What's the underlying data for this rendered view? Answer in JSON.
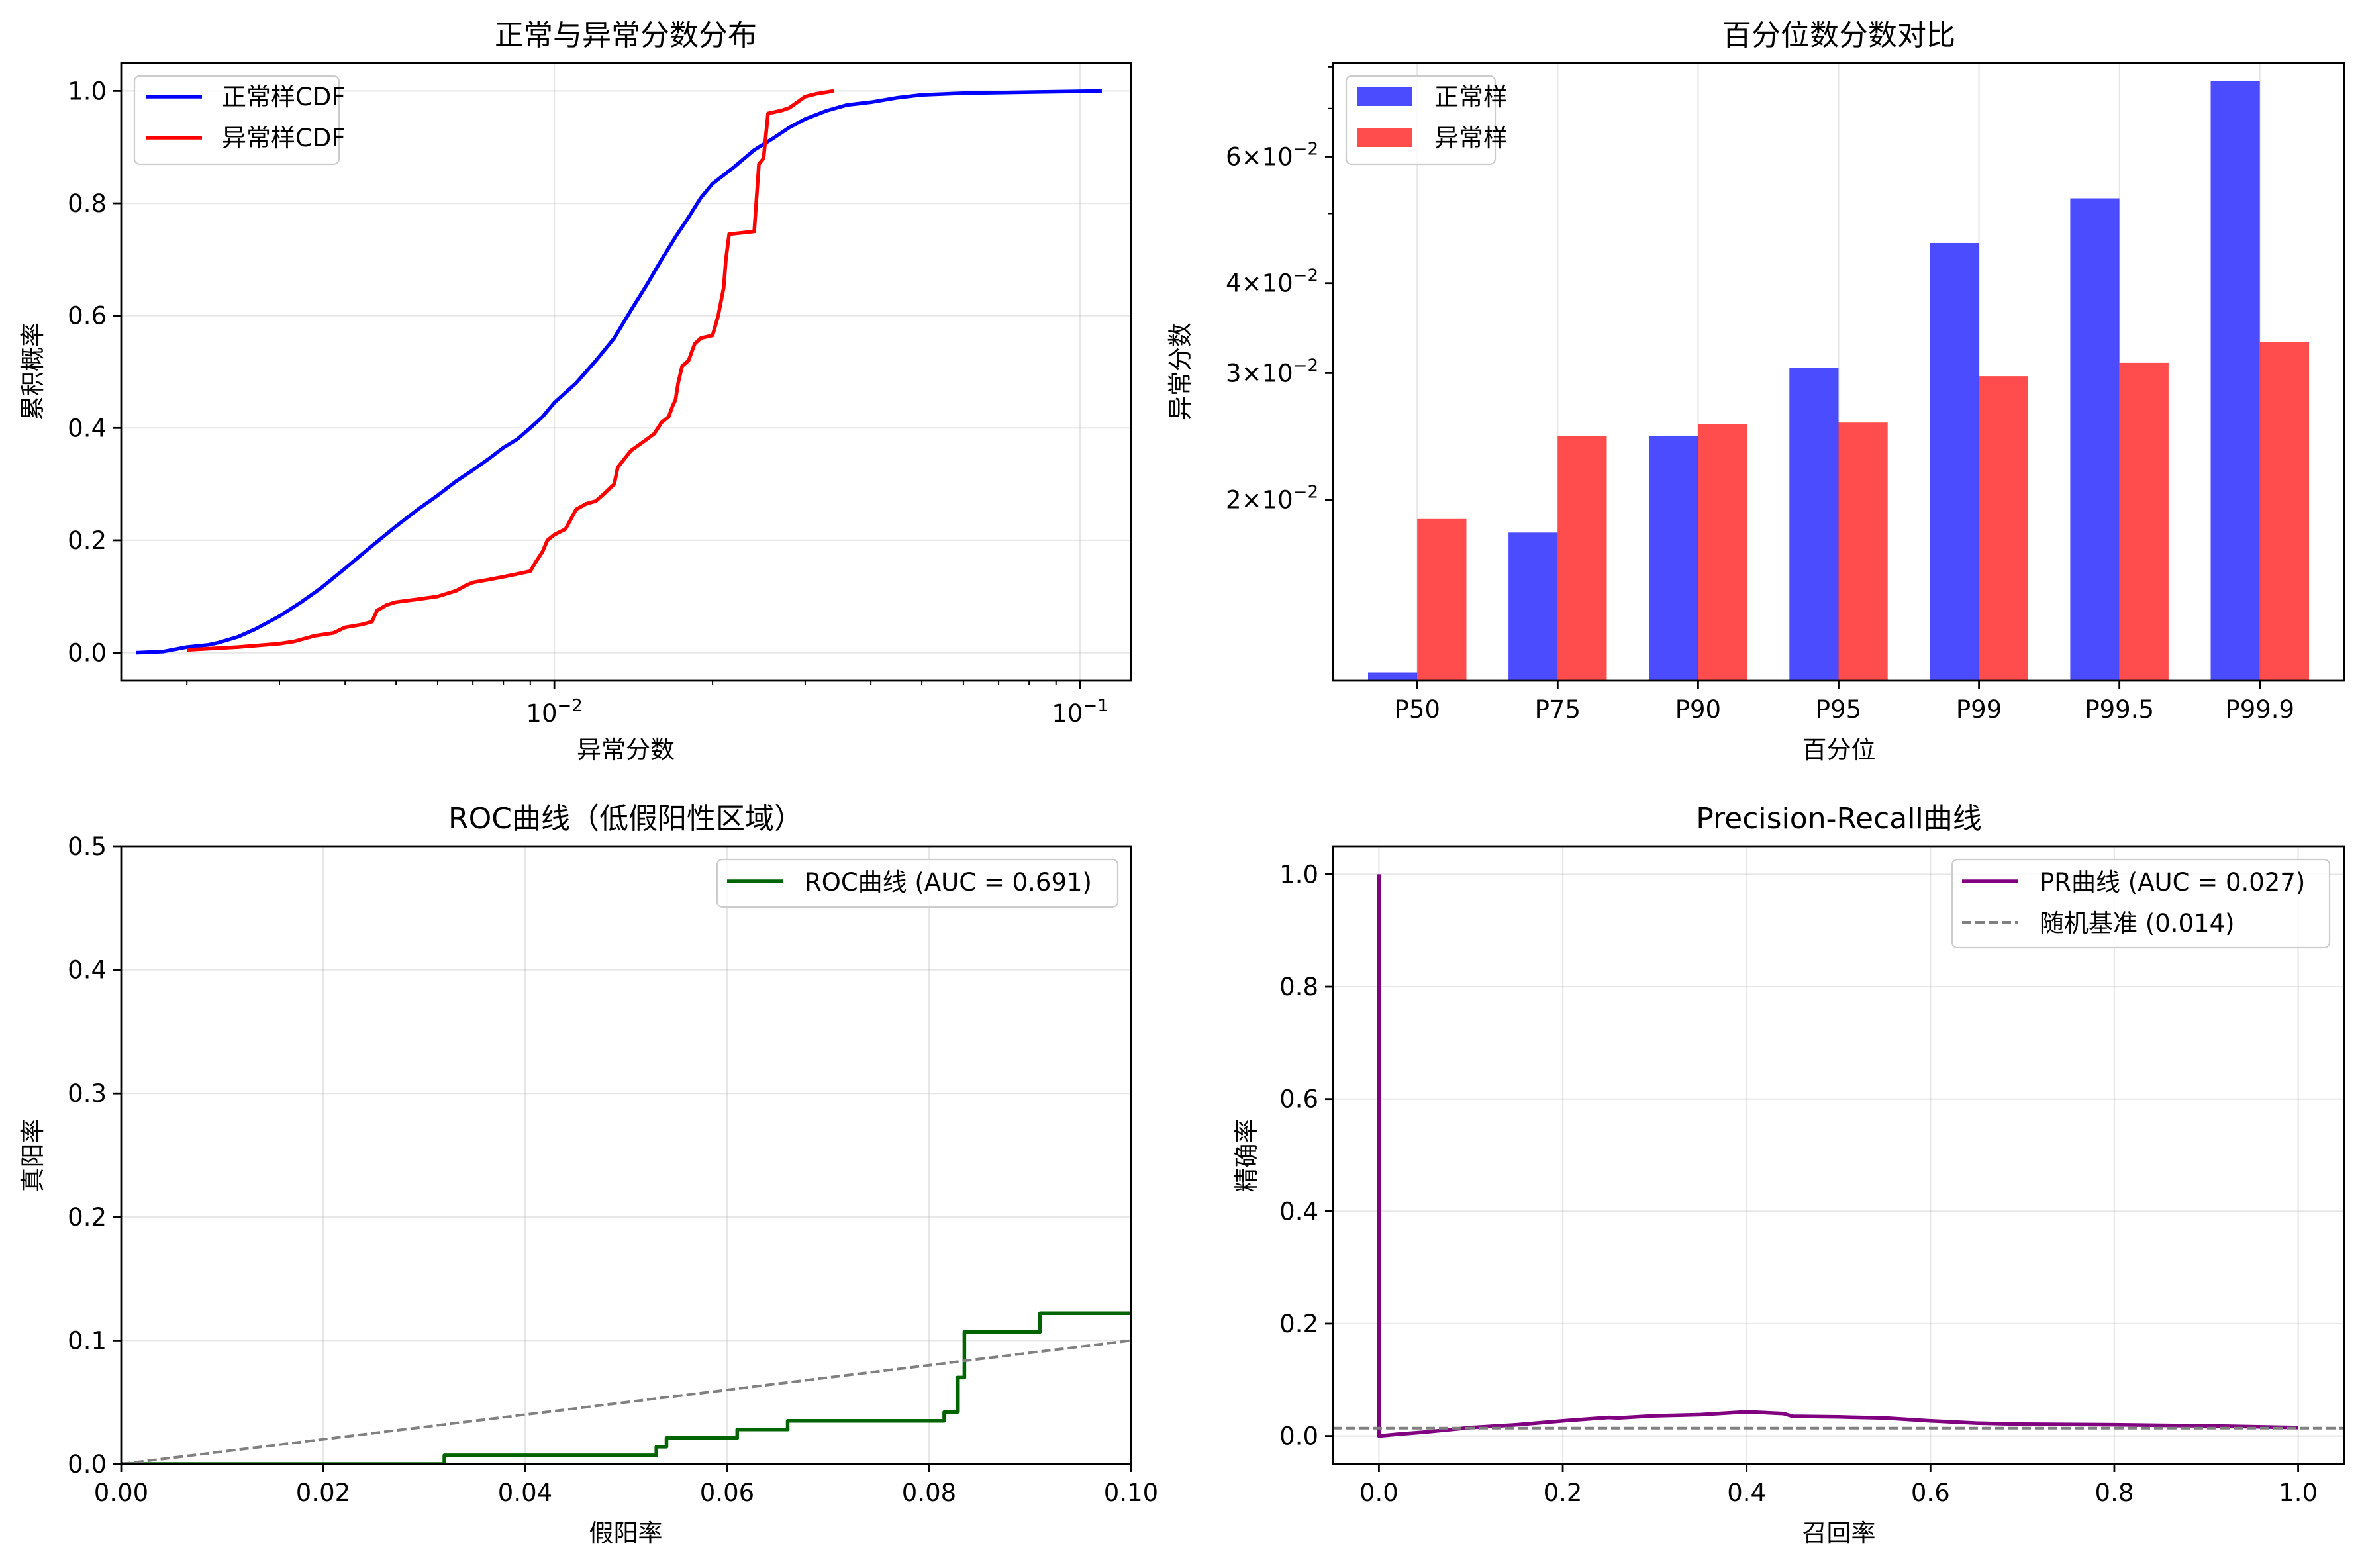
{
  "chart_data": [
    {
      "type": "line",
      "title": "正常与异常分数分布",
      "xlabel": "异常分数",
      "ylabel": "累积概率",
      "xscale": "log",
      "xlim": [
        0.0015,
        0.125
      ],
      "ylim": [
        -0.05,
        1.05
      ],
      "xticks": [
        {
          "v": 0.01,
          "b": "10",
          "e": "−2"
        },
        {
          "v": 0.1,
          "b": "10",
          "e": "−1"
        }
      ],
      "yticks": [
        {
          "v": 0,
          "label": "0.0"
        },
        {
          "v": 0.2,
          "label": "0.2"
        },
        {
          "v": 0.4,
          "label": "0.4"
        },
        {
          "v": 0.6,
          "label": "0.6"
        },
        {
          "v": 0.8,
          "label": "0.8"
        },
        {
          "v": 1.0,
          "label": "1.0"
        }
      ],
      "grid": true,
      "legend_position": "upper-left",
      "series": [
        {
          "name": "正常样CDF",
          "color": "#0000ff",
          "points": [
            [
              0.0016,
              0.0
            ],
            [
              0.0018,
              0.002
            ],
            [
              0.0019,
              0.006
            ],
            [
              0.002,
              0.01
            ],
            [
              0.0021,
              0.012
            ],
            [
              0.0022,
              0.014
            ],
            [
              0.0023,
              0.018
            ],
            [
              0.0025,
              0.028
            ],
            [
              0.0027,
              0.042
            ],
            [
              0.003,
              0.065
            ],
            [
              0.0033,
              0.09
            ],
            [
              0.0036,
              0.115
            ],
            [
              0.004,
              0.15
            ],
            [
              0.0045,
              0.19
            ],
            [
              0.005,
              0.225
            ],
            [
              0.0055,
              0.255
            ],
            [
              0.006,
              0.28
            ],
            [
              0.0065,
              0.305
            ],
            [
              0.007,
              0.325
            ],
            [
              0.0075,
              0.345
            ],
            [
              0.008,
              0.365
            ],
            [
              0.0085,
              0.38
            ],
            [
              0.009,
              0.4
            ],
            [
              0.0095,
              0.42
            ],
            [
              0.01,
              0.445
            ],
            [
              0.011,
              0.48
            ],
            [
              0.012,
              0.52
            ],
            [
              0.013,
              0.56
            ],
            [
              0.014,
              0.61
            ],
            [
              0.015,
              0.655
            ],
            [
              0.016,
              0.7
            ],
            [
              0.017,
              0.74
            ],
            [
              0.018,
              0.775
            ],
            [
              0.019,
              0.81
            ],
            [
              0.02,
              0.835
            ],
            [
              0.022,
              0.865
            ],
            [
              0.024,
              0.895
            ],
            [
              0.026,
              0.915
            ],
            [
              0.028,
              0.935
            ],
            [
              0.03,
              0.95
            ],
            [
              0.033,
              0.965
            ],
            [
              0.036,
              0.975
            ],
            [
              0.04,
              0.98
            ],
            [
              0.045,
              0.988
            ],
            [
              0.05,
              0.993
            ],
            [
              0.06,
              0.996
            ],
            [
              0.08,
              0.998
            ],
            [
              0.11,
              1.0
            ]
          ]
        },
        {
          "name": "异常样CDF",
          "color": "#ff0000",
          "points": [
            [
              0.002,
              0.005
            ],
            [
              0.0025,
              0.01
            ],
            [
              0.003,
              0.016
            ],
            [
              0.0032,
              0.02
            ],
            [
              0.0035,
              0.03
            ],
            [
              0.0038,
              0.035
            ],
            [
              0.004,
              0.045
            ],
            [
              0.0043,
              0.05
            ],
            [
              0.0045,
              0.055
            ],
            [
              0.0046,
              0.075
            ],
            [
              0.0048,
              0.085
            ],
            [
              0.005,
              0.09
            ],
            [
              0.0055,
              0.095
            ],
            [
              0.006,
              0.1
            ],
            [
              0.0065,
              0.11
            ],
            [
              0.0068,
              0.12
            ],
            [
              0.007,
              0.125
            ],
            [
              0.0075,
              0.13
            ],
            [
              0.008,
              0.135
            ],
            [
              0.0085,
              0.14
            ],
            [
              0.009,
              0.145
            ],
            [
              0.0092,
              0.16
            ],
            [
              0.0095,
              0.18
            ],
            [
              0.0097,
              0.2
            ],
            [
              0.01,
              0.21
            ],
            [
              0.0105,
              0.22
            ],
            [
              0.011,
              0.255
            ],
            [
              0.0115,
              0.265
            ],
            [
              0.012,
              0.27
            ],
            [
              0.0125,
              0.285
            ],
            [
              0.013,
              0.3
            ],
            [
              0.0132,
              0.33
            ],
            [
              0.014,
              0.36
            ],
            [
              0.0145,
              0.37
            ],
            [
              0.015,
              0.38
            ],
            [
              0.0155,
              0.39
            ],
            [
              0.016,
              0.41
            ],
            [
              0.0165,
              0.42
            ],
            [
              0.0168,
              0.44
            ],
            [
              0.017,
              0.45
            ],
            [
              0.0172,
              0.48
            ],
            [
              0.0175,
              0.51
            ],
            [
              0.018,
              0.52
            ],
            [
              0.0185,
              0.55
            ],
            [
              0.019,
              0.56
            ],
            [
              0.02,
              0.565
            ],
            [
              0.0205,
              0.6
            ],
            [
              0.021,
              0.65
            ],
            [
              0.0212,
              0.7
            ],
            [
              0.0215,
              0.745
            ],
            [
              0.024,
              0.75
            ],
            [
              0.0245,
              0.87
            ],
            [
              0.025,
              0.88
            ],
            [
              0.0255,
              0.96
            ],
            [
              0.027,
              0.965
            ],
            [
              0.028,
              0.97
            ],
            [
              0.029,
              0.98
            ],
            [
              0.03,
              0.99
            ],
            [
              0.0315,
              0.995
            ],
            [
              0.034,
              1.0
            ]
          ]
        }
      ]
    },
    {
      "type": "bar",
      "title": "百分位数分数对比",
      "xlabel": "百分位",
      "ylabel": "异常分数",
      "yscale": "log",
      "ylim": [
        0.0112,
        0.081
      ],
      "categories": [
        "P50",
        "P75",
        "P90",
        "P95",
        "P99",
        "P99.5",
        "P99.9"
      ],
      "yticks": [
        {
          "v": 0.02,
          "m": "2",
          "e": "−2"
        },
        {
          "v": 0.03,
          "m": "3",
          "e": "−2"
        },
        {
          "v": 0.04,
          "m": "4",
          "e": "−2"
        },
        {
          "v": 0.06,
          "m": "6",
          "e": "−2"
        }
      ],
      "times": "×",
      "grid": true,
      "legend_position": "upper-left",
      "series": [
        {
          "name": "正常样",
          "color": "#0000ff",
          "values": [
            0.0115,
            0.018,
            0.0245,
            0.0305,
            0.0455,
            0.0525,
            0.0765
          ]
        },
        {
          "name": "异常样",
          "color": "#ff0000",
          "values": [
            0.0188,
            0.0245,
            0.0255,
            0.0256,
            0.0297,
            0.031,
            0.0331
          ]
        }
      ]
    },
    {
      "type": "line",
      "title": "ROC曲线（低假阳性区域）",
      "xlabel": "假阳率",
      "ylabel": "真阳率",
      "xlim": [
        0,
        0.1
      ],
      "ylim": [
        0,
        0.5
      ],
      "xticks": [
        {
          "v": 0,
          "label": "0.00"
        },
        {
          "v": 0.02,
          "label": "0.02"
        },
        {
          "v": 0.04,
          "label": "0.04"
        },
        {
          "v": 0.06,
          "label": "0.06"
        },
        {
          "v": 0.08,
          "label": "0.08"
        },
        {
          "v": 0.1,
          "label": "0.10"
        }
      ],
      "yticks": [
        {
          "v": 0,
          "label": "0.0"
        },
        {
          "v": 0.1,
          "label": "0.1"
        },
        {
          "v": 0.2,
          "label": "0.2"
        },
        {
          "v": 0.3,
          "label": "0.3"
        },
        {
          "v": 0.4,
          "label": "0.4"
        },
        {
          "v": 0.5,
          "label": "0.5"
        }
      ],
      "grid": true,
      "legend_position": "upper-right",
      "series": [
        {
          "name": "ROC曲线 (AUC = 0.691)",
          "color": "#006400",
          "points": [
            [
              0,
              0
            ],
            [
              0.032,
              0
            ],
            [
              0.032,
              0.007
            ],
            [
              0.053,
              0.007
            ],
            [
              0.053,
              0.014
            ],
            [
              0.054,
              0.014
            ],
            [
              0.054,
              0.021
            ],
            [
              0.061,
              0.021
            ],
            [
              0.061,
              0.028
            ],
            [
              0.066,
              0.028
            ],
            [
              0.066,
              0.035
            ],
            [
              0.0815,
              0.035
            ],
            [
              0.0815,
              0.042
            ],
            [
              0.0828,
              0.042
            ],
            [
              0.0828,
              0.07
            ],
            [
              0.0835,
              0.07
            ],
            [
              0.0835,
              0.107
            ],
            [
              0.091,
              0.107
            ],
            [
              0.091,
              0.122
            ],
            [
              0.1,
              0.122
            ]
          ]
        },
        {
          "name": "diagonal",
          "color": "#808080",
          "dashed": true,
          "points": [
            [
              0,
              0
            ],
            [
              0.1,
              0.1
            ]
          ]
        }
      ]
    },
    {
      "type": "line",
      "title": "Precision-Recall曲线",
      "xlabel": "召回率",
      "ylabel": "精确率",
      "xlim": [
        -0.05,
        1.05
      ],
      "ylim": [
        -0.05,
        1.05
      ],
      "xticks": [
        {
          "v": 0,
          "label": "0.0"
        },
        {
          "v": 0.2,
          "label": "0.2"
        },
        {
          "v": 0.4,
          "label": "0.4"
        },
        {
          "v": 0.6,
          "label": "0.6"
        },
        {
          "v": 0.8,
          "label": "0.8"
        },
        {
          "v": 1.0,
          "label": "1.0"
        }
      ],
      "yticks": [
        {
          "v": 0,
          "label": "0.0"
        },
        {
          "v": 0.2,
          "label": "0.2"
        },
        {
          "v": 0.4,
          "label": "0.4"
        },
        {
          "v": 0.6,
          "label": "0.6"
        },
        {
          "v": 0.8,
          "label": "0.8"
        },
        {
          "v": 1.0,
          "label": "1.0"
        }
      ],
      "grid": true,
      "legend_position": "upper-right",
      "series": [
        {
          "name": "PR曲线 (AUC = 0.027)",
          "color": "#800080",
          "points": [
            [
              0,
              1.0
            ],
            [
              0,
              0
            ],
            [
              0.02,
              0.003
            ],
            [
              0.05,
              0.007
            ],
            [
              0.1,
              0.015
            ],
            [
              0.15,
              0.02
            ],
            [
              0.2,
              0.027
            ],
            [
              0.25,
              0.033
            ],
            [
              0.26,
              0.032
            ],
            [
              0.3,
              0.036
            ],
            [
              0.35,
              0.038
            ],
            [
              0.4,
              0.043
            ],
            [
              0.44,
              0.04
            ],
            [
              0.45,
              0.035
            ],
            [
              0.5,
              0.034
            ],
            [
              0.55,
              0.032
            ],
            [
              0.6,
              0.027
            ],
            [
              0.65,
              0.023
            ],
            [
              0.7,
              0.021
            ],
            [
              0.8,
              0.02
            ],
            [
              0.9,
              0.018
            ],
            [
              1.0,
              0.015
            ]
          ]
        },
        {
          "name": "随机基准 (0.014)",
          "color": "#808080",
          "dashed": true,
          "points": [
            [
              -0.05,
              0.014
            ],
            [
              1.05,
              0.014
            ]
          ]
        }
      ]
    }
  ]
}
